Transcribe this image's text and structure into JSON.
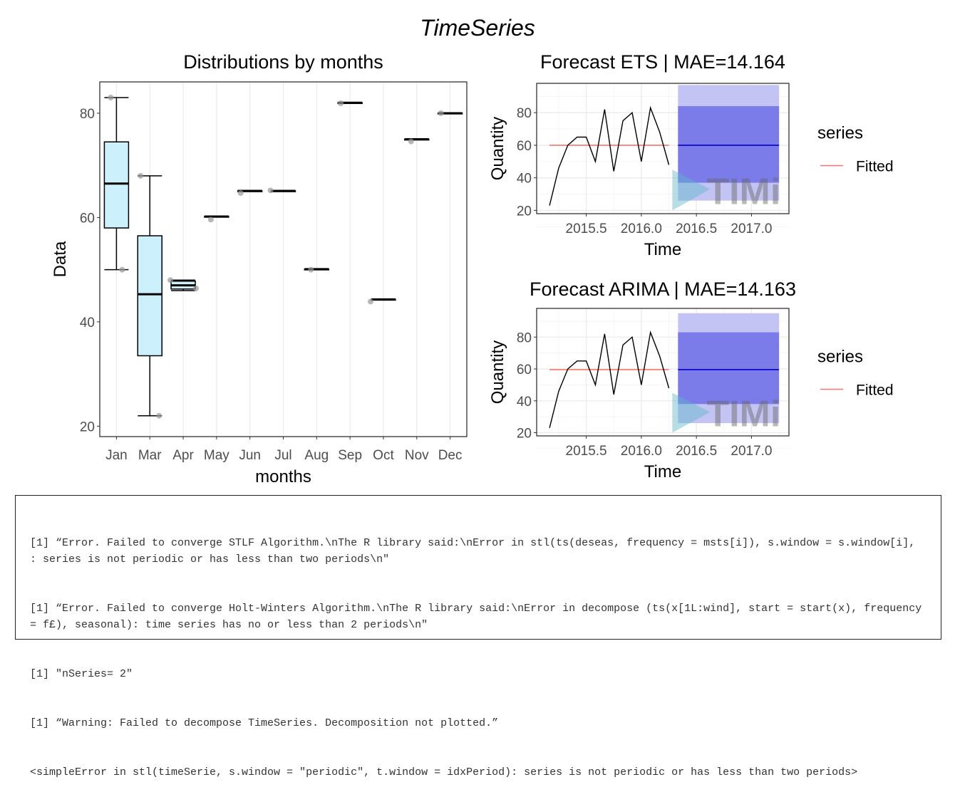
{
  "page_title": "TimeSeries",
  "chart_data": [
    {
      "type": "box",
      "title": "Distributions by months",
      "xlabel": "months",
      "ylabel": "Data",
      "ylim": [
        18,
        86
      ],
      "yticks": [
        20,
        40,
        60,
        80
      ],
      "grid": true,
      "box_fill": "#cdf0fd",
      "categories": [
        "Jan",
        "Mar",
        "Apr",
        "May",
        "Jun",
        "Jul",
        "Aug",
        "Sep",
        "Oct",
        "Nov",
        "Dec"
      ],
      "boxes": [
        {
          "min": 50,
          "q1": 58,
          "median": 66.5,
          "q3": 74.5,
          "max": 83,
          "points": [
            83,
            50
          ]
        },
        {
          "min": 22,
          "q1": 33.5,
          "median": 45.3,
          "q3": 56.5,
          "max": 68,
          "points": [
            68,
            22
          ]
        },
        {
          "min": 46,
          "q1": 46.3,
          "median": 47,
          "q3": 47.8,
          "max": 48,
          "points": [
            48,
            46.4
          ]
        },
        {
          "min": 60.2,
          "q1": 60.2,
          "median": 60.2,
          "q3": 60.2,
          "max": 60.2,
          "points": [
            59.6
          ]
        },
        {
          "min": 65.1,
          "q1": 65.1,
          "median": 65.1,
          "q3": 65.1,
          "max": 65.1,
          "points": [
            64.7
          ]
        },
        {
          "min": 65.1,
          "q1": 65.1,
          "median": 65.1,
          "q3": 65.1,
          "max": 65.1,
          "points": [
            65.2
          ]
        },
        {
          "min": 50.1,
          "q1": 50.1,
          "median": 50.1,
          "q3": 50.1,
          "max": 50.1,
          "points": [
            50
          ]
        },
        {
          "min": 82,
          "q1": 82,
          "median": 82,
          "q3": 82,
          "max": 82,
          "points": [
            81.9
          ]
        },
        {
          "min": 44.3,
          "q1": 44.3,
          "median": 44.3,
          "q3": 44.3,
          "max": 44.3,
          "points": [
            43.9
          ]
        },
        {
          "min": 75,
          "q1": 75,
          "median": 75,
          "q3": 75,
          "max": 75,
          "points": [
            74.6
          ]
        },
        {
          "min": 80,
          "q1": 80,
          "median": 80,
          "q3": 80,
          "max": 80,
          "points": [
            80
          ]
        }
      ]
    },
    {
      "type": "line",
      "title": "Forecast ETS | MAE=14.164",
      "xlabel": "Time",
      "ylabel": "Quantity",
      "xlim": [
        2015.05,
        2017.34
      ],
      "ylim": [
        18,
        98
      ],
      "xticks": [
        "2015.5",
        "2016.0",
        "2016.5",
        "2017.0"
      ],
      "yticks": [
        20,
        40,
        60,
        80
      ],
      "grid": true,
      "legend": {
        "title": "series",
        "entries": [
          "Fitted"
        ],
        "position": "right"
      },
      "series": {
        "x": [
          2015.167,
          2015.25,
          2015.333,
          2015.417,
          2015.5,
          2015.583,
          2015.667,
          2015.75,
          2015.833,
          2015.917,
          2016.0,
          2016.083,
          2016.167,
          2016.25
        ],
        "y": [
          23,
          46,
          60,
          65,
          65,
          50,
          82,
          44,
          75,
          80,
          50,
          83,
          68,
          48
        ],
        "color": "#000000"
      },
      "fitted": {
        "name": "Fitted",
        "x": [
          2015.167,
          2016.25
        ],
        "value": 60,
        "color": "#f8766d"
      },
      "forecast": {
        "x": [
          2016.333,
          2017.25
        ],
        "mean": 60,
        "lo80": 37,
        "hi80": 84,
        "lo95": 26,
        "hi95": 97,
        "mean_color": "#0000cc",
        "band80_color": "#7b7bea",
        "band95_color": "#c4c4f4"
      },
      "watermark": "TIMi"
    },
    {
      "type": "line",
      "title": "Forecast ARIMA | MAE=14.163",
      "xlabel": "Time",
      "ylabel": "Quantity",
      "xlim": [
        2015.05,
        2017.34
      ],
      "ylim": [
        18,
        98
      ],
      "xticks": [
        "2015.5",
        "2016.0",
        "2016.5",
        "2017.0"
      ],
      "yticks": [
        20,
        40,
        60,
        80
      ],
      "grid": true,
      "legend": {
        "title": "series",
        "entries": [
          "Fitted"
        ],
        "position": "right"
      },
      "series": {
        "x": [
          2015.167,
          2015.25,
          2015.333,
          2015.417,
          2015.5,
          2015.583,
          2015.667,
          2015.75,
          2015.833,
          2015.917,
          2016.0,
          2016.083,
          2016.167,
          2016.25
        ],
        "y": [
          23,
          46,
          60,
          65,
          65,
          50,
          82,
          44,
          75,
          80,
          50,
          83,
          68,
          48
        ],
        "color": "#000000"
      },
      "fitted": {
        "name": "Fitted",
        "x": [
          2015.167,
          2016.25
        ],
        "value": 59.6,
        "color": "#f8766d"
      },
      "forecast": {
        "x": [
          2016.333,
          2017.25
        ],
        "mean": 59.6,
        "lo80": 38,
        "hi80": 83,
        "lo95": 26,
        "hi95": 95,
        "mean_color": "#0000cc",
        "band80_color": "#7b7bea",
        "band95_color": "#c4c4f4"
      },
      "watermark": "TIMi"
    }
  ],
  "console": {
    "lines": [
      "[1] “Error. Failed to converge STLF Algorithm.\\nThe R library said:\\nError in stl(ts(deseas, frequency = msts[i]), s.window = s.window[i], : series is not periodic or has less than two periods\\n\"",
      "[1] “Error. Failed to converge Holt-Winters Algorithm.\\nThe R library said:\\nError in decompose (ts(x[1L:wind], start = start(x), frequency = f£), seasonal): time series has no or less than 2 periods\\n\"",
      "[1] \"nSeries= 2\"",
      "[1] “Warning: Failed to decompose TimeSeries. Decomposition not plotted.”",
      "<simpleError in stl(timeSerie, s.window = \"periodic\", t.window = idxPeriod): series is not periodic or has less than two periods>"
    ]
  }
}
